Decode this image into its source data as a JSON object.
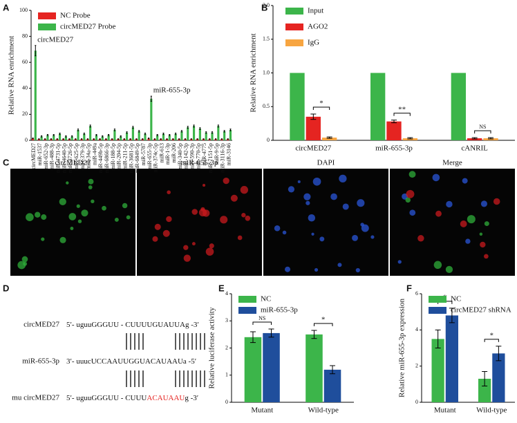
{
  "chart_data": [
    {
      "type": "bar",
      "panel": "A",
      "ylabel": "Relative RNA enrichment",
      "categories": [
        "circMED27",
        "miR-1537",
        "miR-652-3p",
        "miR-488-3p",
        "miR-4731-5p",
        "miR-4640-5p",
        "miR-4726-5p",
        "miR-625-5p",
        "miR-379-3p",
        "miR-34a-5p",
        "miR-449a",
        "miR-449b-5p",
        "miR-6866-3p",
        "miR-188-5p",
        "miR-204-5p",
        "miR-211-5p",
        "miR-3681-5p",
        "miR-6849-5p",
        "miR-5787",
        "miR-655-3p",
        "miR-374c-5p",
        "miR-613",
        "miR-1-3p",
        "miR-206",
        "miR-340-5p",
        "miR-142-3p",
        "miR-590-3p",
        "miR-770-5p",
        "miR-4775",
        "miR-7151-5p",
        "miR-9-5p",
        "miR-3116-3p",
        "miR-3146"
      ],
      "series": [
        {
          "name": "NC Probe",
          "color": "#e52421",
          "values": [
            1.5,
            1,
            1,
            1,
            1,
            1,
            1,
            1,
            1,
            1,
            1,
            1,
            1,
            1,
            1,
            1,
            1,
            1,
            1,
            1.5,
            1,
            1,
            1,
            1,
            1,
            1,
            1,
            1,
            1,
            1,
            1,
            1,
            1
          ],
          "errors": [
            0.3,
            0.2,
            0.2,
            0.2,
            0.2,
            0.2,
            0.2,
            0.2,
            0.2,
            0.2,
            0.2,
            0.2,
            0.2,
            0.2,
            0.2,
            0.2,
            0.2,
            0.2,
            0.2,
            0.3,
            0.2,
            0.2,
            0.2,
            0.2,
            0.2,
            0.2,
            0.2,
            0.2,
            0.2,
            0.2,
            0.2,
            0.2,
            0.2
          ]
        },
        {
          "name": "circMED27 Probe",
          "color": "#3cb54a",
          "values": [
            69,
            3,
            4,
            4,
            5,
            3,
            3,
            8,
            5,
            11,
            4,
            3,
            4,
            8,
            3,
            6,
            10,
            7,
            5,
            32,
            4,
            5,
            4,
            5,
            7,
            10,
            11,
            9,
            6,
            6,
            11,
            7,
            8
          ],
          "errors": [
            4,
            0.5,
            0.5,
            0.5,
            0.6,
            0.5,
            0.5,
            0.7,
            0.6,
            0.8,
            0.5,
            0.5,
            0.5,
            0.7,
            0.5,
            0.6,
            0.8,
            0.6,
            0.6,
            2,
            0.5,
            0.6,
            0.5,
            0.6,
            0.6,
            0.8,
            0.8,
            0.7,
            0.6,
            0.6,
            0.8,
            0.6,
            0.7
          ]
        }
      ],
      "annotations": [
        "circMED27",
        "miR-655-3p"
      ],
      "ylim": [
        0,
        100
      ],
      "yticks": [
        0,
        20,
        40,
        60,
        80,
        100
      ],
      "legend": "upper left"
    },
    {
      "type": "bar",
      "panel": "B",
      "ylabel": "Relative RNA enrichment",
      "categories": [
        "circMED27",
        "miR-655-3p",
        "cANRIL"
      ],
      "series": [
        {
          "name": "Input",
          "color": "#3cb54a",
          "values": [
            1,
            1,
            1
          ],
          "errors": [
            0,
            0,
            0
          ]
        },
        {
          "name": "AGO2",
          "color": "#e52421",
          "values": [
            0.35,
            0.28,
            0.03
          ],
          "errors": [
            0.04,
            0.02,
            0.01
          ]
        },
        {
          "name": "IgG",
          "color": "#f7a541",
          "values": [
            0.04,
            0.03,
            0.03
          ],
          "errors": [
            0.01,
            0.01,
            0.01
          ]
        }
      ],
      "annotations": [
        "*",
        "**",
        "NS"
      ],
      "ylim": [
        0,
        2
      ],
      "yticks": [
        0,
        0.5,
        {
          "value": 1,
          "label": "1.0"
        },
        1.5,
        {
          "value": 2,
          "label": "2.0"
        }
      ],
      "legend": "upper left"
    },
    {
      "type": "bar",
      "panel": "E",
      "ylabel": "Relative luciferase activity",
      "categories": [
        "Mutant",
        "Wild-type"
      ],
      "series": [
        {
          "name": "NC",
          "color": "#3cb54a",
          "values": [
            2.4,
            2.5
          ],
          "errors": [
            0.2,
            0.15
          ]
        },
        {
          "name": "miR-655-3p",
          "color": "#1f4e9c",
          "values": [
            2.55,
            1.2
          ],
          "errors": [
            0.15,
            0.15
          ]
        }
      ],
      "annotations": [
        "NS",
        "*"
      ],
      "ylim": [
        0,
        4
      ],
      "yticks": [
        0,
        1,
        2,
        3,
        4
      ],
      "legend": "upper left"
    },
    {
      "type": "bar",
      "panel": "F",
      "ylabel": "Relative miR-655-3p expression",
      "categories": [
        "Mutant",
        "Wild-type"
      ],
      "series": [
        {
          "name": "NC",
          "color": "#3cb54a",
          "values": [
            3.5,
            1.3
          ],
          "errors": [
            0.5,
            0.4
          ]
        },
        {
          "name": "circMED27 shRNA",
          "color": "#1f4e9c",
          "values": [
            4.8,
            2.7
          ],
          "errors": [
            0.4,
            0.4
          ]
        }
      ],
      "annotations": [
        "*",
        "*"
      ],
      "ylim": [
        0,
        6
      ],
      "yticks": [
        0,
        2,
        4,
        6
      ],
      "legend": "upper left"
    }
  ],
  "panel_c": {
    "letter": "C",
    "titles": [
      "circMED27",
      "miR-655-3p",
      "DAPI",
      "Merge"
    ]
  },
  "panel_d": {
    "letter": "D",
    "rows": [
      {
        "label": "circMED27",
        "seq": [
          "5′- uguuGGGUU - CUUUUGUAUUAg -3′"
        ]
      },
      {
        "label": "miR-655-3p",
        "seq": [
          "3′- uuucUCCAAUUGGUACAUAAUa -5′"
        ]
      },
      {
        "label": "mu circMED27",
        "seq": [
          "5′- uguuGGGUU - CUUU",
          "ACAUAAU",
          "g -3′"
        ]
      }
    ],
    "highlight_color": "#e52421"
  }
}
